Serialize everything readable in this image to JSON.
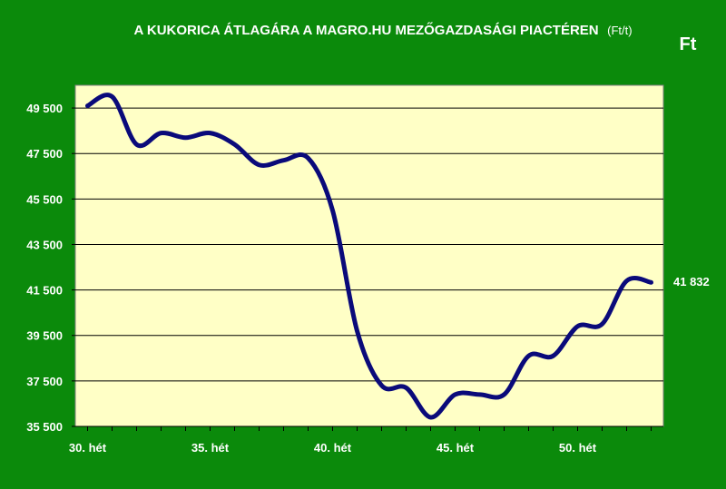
{
  "chart_data": {
    "type": "line",
    "title": "A KUKORICA ÁTLAGÁRA A MAGRO.HU MEZŐGAZDASÁGI PIACTÉREN",
    "title_unit": "(Ft/t)",
    "ylabel": "Ft",
    "ylim": [
      35500,
      50500
    ],
    "yticks": [
      35500,
      37500,
      39500,
      41500,
      43500,
      45500,
      47500,
      49500
    ],
    "ytick_labels": [
      "35 500",
      "37 500",
      "39 500",
      "41 500",
      "43 500",
      "45 500",
      "47 500",
      "49 500"
    ],
    "xlim": [
      29.5,
      53.5
    ],
    "xticks": [
      30,
      35,
      40,
      45,
      50
    ],
    "xtick_labels": [
      "30. hét",
      "35. hét",
      "40. hét",
      "45. hét",
      "50. hét"
    ],
    "grid": true,
    "series": [
      {
        "color": "#0a0a7a",
        "x": [
          30,
          31,
          32,
          33,
          34,
          35,
          36,
          37,
          38,
          39,
          40,
          41,
          42,
          43,
          44,
          45,
          46,
          47,
          48,
          49,
          50,
          51,
          52,
          53
        ],
        "y": [
          49600,
          50000,
          47900,
          48400,
          48200,
          48400,
          47900,
          47000,
          47200,
          47300,
          45000,
          39700,
          37300,
          37200,
          35900,
          36900,
          36900,
          36900,
          38600,
          38600,
          39900,
          40000,
          41900,
          41832
        ]
      }
    ],
    "last_value_label": "41 832"
  },
  "colors": {
    "background": "#0b8a0b",
    "plot_background": "#ffffc6",
    "line": "#0a0a7a",
    "grid": "#000000",
    "text": "#ffffff"
  }
}
